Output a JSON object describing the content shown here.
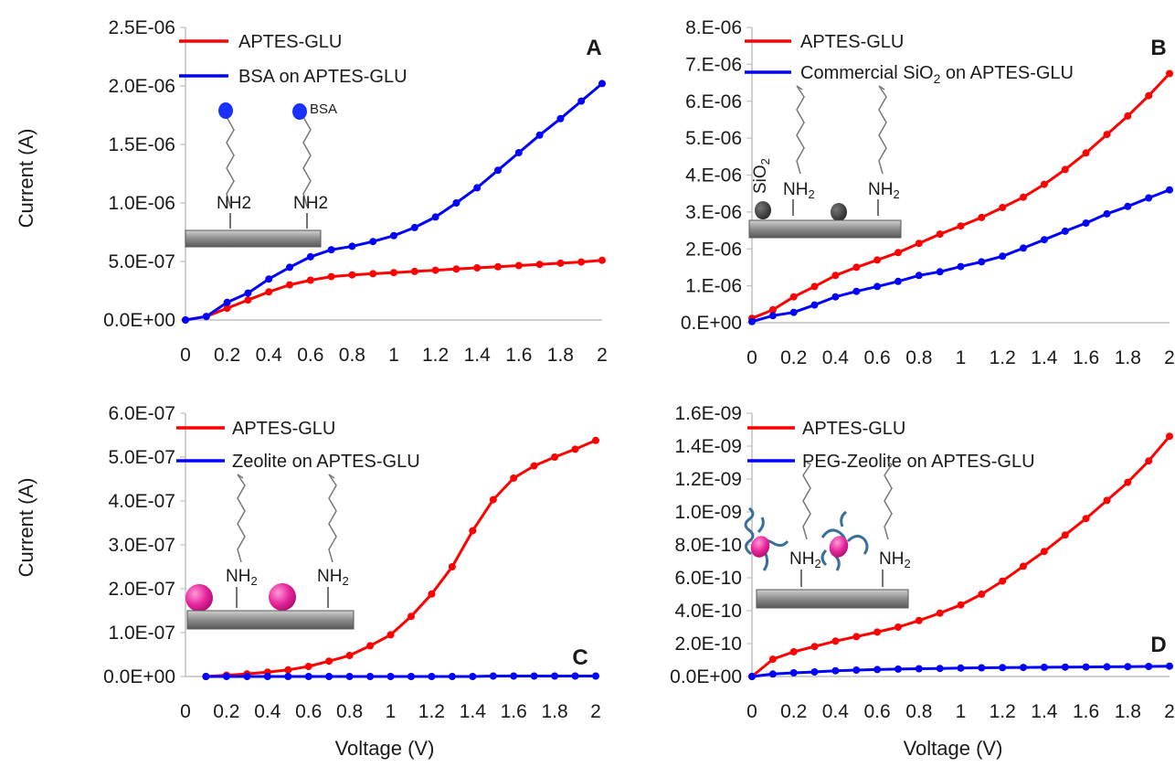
{
  "figure": {
    "ylabel": "Current (A)",
    "xlabel": "Voltage (V)"
  },
  "chart_data": [
    {
      "panel": "A",
      "type": "line",
      "xlabel": "",
      "ylabel": "Current (A)",
      "xlim": [
        0,
        2
      ],
      "ylim": [
        0,
        2.5e-06
      ],
      "x_ticks": [
        "0",
        "0.2",
        "0.4",
        "0.6",
        "0.8",
        "1",
        "1.2",
        "1.4",
        "1.6",
        "1.8",
        "2"
      ],
      "y_ticks": [
        "0.0E+00",
        "5.0E-07",
        "1.0E-06",
        "1.5E-06",
        "2.0E-06",
        "2.5E-06"
      ],
      "legend_position": "top-left",
      "scheme_labels": [
        "NH2",
        "NH2",
        "BSA"
      ],
      "series": [
        {
          "name": "APTES-GLU",
          "color": "#ff0000",
          "x": [
            0,
            0.1,
            0.2,
            0.3,
            0.4,
            0.5,
            0.6,
            0.7,
            0.8,
            0.9,
            1.0,
            1.1,
            1.2,
            1.3,
            1.4,
            1.5,
            1.6,
            1.7,
            1.8,
            1.9,
            2.0
          ],
          "y": [
            0,
            3e-08,
            1e-07,
            1.7e-07,
            2.4e-07,
            3e-07,
            3.4e-07,
            3.7e-07,
            3.85e-07,
            3.95e-07,
            4.05e-07,
            4.15e-07,
            4.25e-07,
            4.35e-07,
            4.45e-07,
            4.55e-07,
            4.65e-07,
            4.75e-07,
            4.85e-07,
            4.95e-07,
            5.1e-07
          ]
        },
        {
          "name": "BSA on APTES-GLU",
          "color": "#0000ff",
          "x": [
            0,
            0.1,
            0.2,
            0.3,
            0.4,
            0.5,
            0.6,
            0.7,
            0.8,
            0.9,
            1.0,
            1.1,
            1.2,
            1.3,
            1.4,
            1.5,
            1.6,
            1.7,
            1.8,
            1.9,
            2.0
          ],
          "y": [
            0,
            3e-08,
            1.5e-07,
            2.3e-07,
            3.5e-07,
            4.5e-07,
            5.4e-07,
            6e-07,
            6.3e-07,
            6.7e-07,
            7.2e-07,
            7.9e-07,
            8.8e-07,
            1e-06,
            1.13e-06,
            1.28e-06,
            1.43e-06,
            1.58e-06,
            1.72e-06,
            1.87e-06,
            2.02e-06
          ]
        }
      ]
    },
    {
      "panel": "B",
      "type": "line",
      "xlabel": "",
      "ylabel": "",
      "xlim": [
        0,
        2
      ],
      "ylim": [
        0,
        8e-06
      ],
      "x_ticks": [
        "0",
        "0.2",
        "0.4",
        "0.6",
        "0.8",
        "1",
        "1.2",
        "1.4",
        "1.6",
        "1.8",
        "2"
      ],
      "y_ticks": [
        "0.E+00",
        "1.E-06",
        "2.E-06",
        "3.E-06",
        "4.E-06",
        "5.E-06",
        "6.E-06",
        "7.E-06",
        "8.E-06"
      ],
      "legend_position": "top-left",
      "scheme_labels": [
        "SiO2",
        "NH2",
        "NH2"
      ],
      "series": [
        {
          "name": "APTES-GLU",
          "color": "#ff0000",
          "x": [
            0,
            0.1,
            0.2,
            0.3,
            0.4,
            0.5,
            0.6,
            0.7,
            0.8,
            0.9,
            1.0,
            1.1,
            1.2,
            1.3,
            1.4,
            1.5,
            1.6,
            1.7,
            1.8,
            1.9,
            2.0
          ],
          "y": [
            1.2e-07,
            3.5e-07,
            7e-07,
            9.8e-07,
            1.28e-06,
            1.5e-06,
            1.7e-06,
            1.9e-06,
            2.15e-06,
            2.4e-06,
            2.62e-06,
            2.85e-06,
            3.12e-06,
            3.4e-06,
            3.75e-06,
            4.15e-06,
            4.6e-06,
            5.1e-06,
            5.6e-06,
            6.15e-06,
            6.75e-06
          ]
        },
        {
          "name": "Commercial SiO2 on APTES-GLU",
          "color": "#0000ff",
          "x": [
            0,
            0.1,
            0.2,
            0.3,
            0.4,
            0.5,
            0.6,
            0.7,
            0.8,
            0.9,
            1.0,
            1.1,
            1.2,
            1.3,
            1.4,
            1.5,
            1.6,
            1.7,
            1.8,
            1.9,
            2.0
          ],
          "y": [
            3e-08,
            1.9e-07,
            2.8e-07,
            4.8e-07,
            7e-07,
            8.5e-07,
            9.8e-07,
            1.12e-06,
            1.28e-06,
            1.38e-06,
            1.52e-06,
            1.65e-06,
            1.8e-06,
            2.02e-06,
            2.25e-06,
            2.48e-06,
            2.7e-06,
            2.95e-06,
            3.15e-06,
            3.38e-06,
            3.6e-06
          ]
        }
      ]
    },
    {
      "panel": "C",
      "type": "line",
      "xlabel": "Voltage (V)",
      "ylabel": "Current (A)",
      "xlim": [
        0,
        2
      ],
      "ylim": [
        0,
        6e-07
      ],
      "x_ticks": [
        "0",
        "0.2",
        "0.4",
        "0.6",
        "0.8",
        "1",
        "1.2",
        "1.4",
        "1.6",
        "1.8",
        "2"
      ],
      "y_ticks": [
        "0.0E+00",
        "1.0E-07",
        "2.0E-07",
        "3.0E-07",
        "4.0E-07",
        "5.0E-07",
        "6.0E-07"
      ],
      "legend_position": "top-left",
      "scheme_labels": [
        "NH2",
        "NH2"
      ],
      "series": [
        {
          "name": "APTES-GLU",
          "color": "#ff0000",
          "x": [
            0.1,
            0.2,
            0.3,
            0.4,
            0.5,
            0.6,
            0.7,
            0.8,
            0.9,
            1.0,
            1.1,
            1.2,
            1.3,
            1.4,
            1.5,
            1.6,
            1.7,
            1.8,
            1.9,
            2.0
          ],
          "y": [
            0,
            3e-09,
            6e-09,
            1e-08,
            1.5e-08,
            2.3e-08,
            3.5e-08,
            4.8e-08,
            7e-08,
            9.5e-08,
            1.37e-07,
            1.88e-07,
            2.5e-07,
            3.32e-07,
            4.03e-07,
            4.52e-07,
            4.8e-07,
            5e-07,
            5.18e-07,
            5.38e-07
          ]
        },
        {
          "name": "Zeolite on APTES-GLU",
          "color": "#0000ff",
          "x": [
            0.1,
            0.2,
            0.3,
            0.4,
            0.5,
            0.6,
            0.7,
            0.8,
            0.9,
            1.0,
            1.1,
            1.2,
            1.3,
            1.4,
            1.5,
            1.6,
            1.7,
            1.8,
            1.9,
            2.0
          ],
          "y": [
            0,
            0,
            0,
            0,
            0,
            0,
            0,
            0,
            0,
            0,
            0,
            0,
            0,
            0,
            1e-09,
            1e-09,
            1e-09,
            1e-09,
            1e-09,
            1e-09
          ]
        }
      ]
    },
    {
      "panel": "D",
      "type": "line",
      "xlabel": "Voltage (V)",
      "ylabel": "",
      "xlim": [
        0,
        2
      ],
      "ylim": [
        0,
        1.6e-09
      ],
      "x_ticks": [
        "0",
        "0.2",
        "0.4",
        "0.6",
        "0.8",
        "1",
        "1.2",
        "1.4",
        "1.6",
        "1.8",
        "2"
      ],
      "y_ticks": [
        "0.0E+00",
        "2.0E-10",
        "4.0E-10",
        "6.0E-10",
        "8.0E-10",
        "1.0E-09",
        "1.2E-09",
        "1.4E-09",
        "1.6E-09"
      ],
      "legend_position": "top-left",
      "scheme_labels": [
        "NH2",
        "NH2"
      ],
      "series": [
        {
          "name": "APTES-GLU",
          "color": "#ff0000",
          "x": [
            0,
            0.1,
            0.2,
            0.3,
            0.4,
            0.5,
            0.6,
            0.7,
            0.8,
            0.9,
            1.0,
            1.1,
            1.2,
            1.3,
            1.4,
            1.5,
            1.6,
            1.7,
            1.8,
            1.9,
            2.0
          ],
          "y": [
            0,
            1.05e-10,
            1.5e-10,
            1.82e-10,
            2.15e-10,
            2.42e-10,
            2.7e-10,
            3e-10,
            3.4e-10,
            3.85e-10,
            4.35e-10,
            5e-10,
            5.8e-10,
            6.7e-10,
            7.6e-10,
            8.6e-10,
            9.6e-10,
            1.07e-09,
            1.18e-09,
            1.31e-09,
            1.46e-09
          ]
        },
        {
          "name": "PEG-Zeolite on APTES-GLU",
          "color": "#0000ff",
          "x": [
            0,
            0.1,
            0.2,
            0.3,
            0.4,
            0.5,
            0.6,
            0.7,
            0.8,
            0.9,
            1.0,
            1.1,
            1.2,
            1.3,
            1.4,
            1.5,
            1.6,
            1.7,
            1.8,
            1.9,
            2.0
          ],
          "y": [
            0,
            1.5e-11,
            2.2e-11,
            2.8e-11,
            3.5e-11,
            3.9e-11,
            4.2e-11,
            4.5e-11,
            4.7e-11,
            4.9e-11,
            5.1e-11,
            5.3e-11,
            5.4e-11,
            5.5e-11,
            5.6e-11,
            5.7e-11,
            5.8e-11,
            5.9e-11,
            6e-11,
            6.1e-11,
            6.3e-11
          ]
        }
      ]
    }
  ]
}
